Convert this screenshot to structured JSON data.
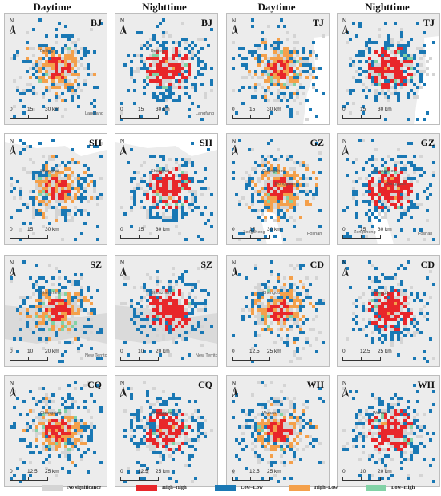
{
  "columns": [
    "Daytime",
    "Nighttime",
    "Daytime",
    "Nighttime"
  ],
  "colors": {
    "no_significance": "#d4d4d4",
    "high_high": "#e8262a",
    "low_low": "#1a78b4",
    "high_low": "#f4a04b",
    "low_high": "#82d2a6",
    "water": "#ffffff",
    "land": "#ececec"
  },
  "legend": [
    {
      "key": "no_significance",
      "label": "No significance"
    },
    {
      "key": "high_high",
      "label": "High–High"
    },
    {
      "key": "low_low",
      "label": "Low–Low"
    },
    {
      "key": "high_low",
      "label": "High–Low"
    },
    {
      "key": "low_high",
      "label": "Low–High"
    }
  ],
  "north_label": "N",
  "panels": [
    {
      "city": "BJ",
      "scale": [
        "0",
        "15",
        "30 km"
      ],
      "places": [
        "Beijing",
        "Langfang"
      ]
    },
    {
      "city": "BJ",
      "scale": [
        "0",
        "15",
        "30 km"
      ],
      "places": [
        "Beijing",
        "Langfang"
      ]
    },
    {
      "city": "TJ",
      "scale": [
        "0",
        "15",
        "30 km"
      ],
      "places": []
    },
    {
      "city": "TJ",
      "scale": [
        "0",
        "15",
        "30 km"
      ],
      "places": []
    },
    {
      "city": "SH",
      "scale": [
        "0",
        "15",
        "30 km"
      ],
      "places": [
        "Shanghai"
      ]
    },
    {
      "city": "SH",
      "scale": [
        "0",
        "15",
        "30 km"
      ],
      "places": [
        "Shanghai"
      ]
    },
    {
      "city": "GZ",
      "scale": [
        "0",
        "15",
        "30 km"
      ],
      "places": [
        "Guangzhou",
        "Foshan",
        "Dongguan",
        "Zengcheng"
      ]
    },
    {
      "city": "GZ",
      "scale": [
        "0",
        "15",
        "30 km"
      ],
      "places": [
        "Guangzhou",
        "Foshan",
        "Dongguan",
        "Zengcheng"
      ]
    },
    {
      "city": "SZ",
      "scale": [
        "0",
        "10",
        "20 km"
      ],
      "places": [
        "Shenzhen",
        "New Territories"
      ]
    },
    {
      "city": "SZ",
      "scale": [
        "0",
        "10",
        "20 km"
      ],
      "places": [
        "Shenzhen",
        "New Territories"
      ]
    },
    {
      "city": "CD",
      "scale": [
        "0",
        "12.5",
        "25 km"
      ],
      "places": [
        "Chengdu"
      ]
    },
    {
      "city": "CD",
      "scale": [
        "0",
        "12.5",
        "25 km"
      ],
      "places": [
        "Chengdu"
      ]
    },
    {
      "city": "CQ",
      "scale": [
        "0",
        "12.5",
        "25 km"
      ],
      "places": [
        "Chongqing"
      ]
    },
    {
      "city": "CQ",
      "scale": [
        "0",
        "12.5",
        "25 km"
      ],
      "places": [
        "Chongqing"
      ]
    },
    {
      "city": "WH",
      "scale": [
        "0",
        "12.5",
        "25 km"
      ],
      "places": [
        "Wuhan"
      ]
    },
    {
      "city": "WH",
      "scale": [
        "0",
        "10",
        "20 km"
      ],
      "places": [
        "Wuhan"
      ]
    }
  ]
}
